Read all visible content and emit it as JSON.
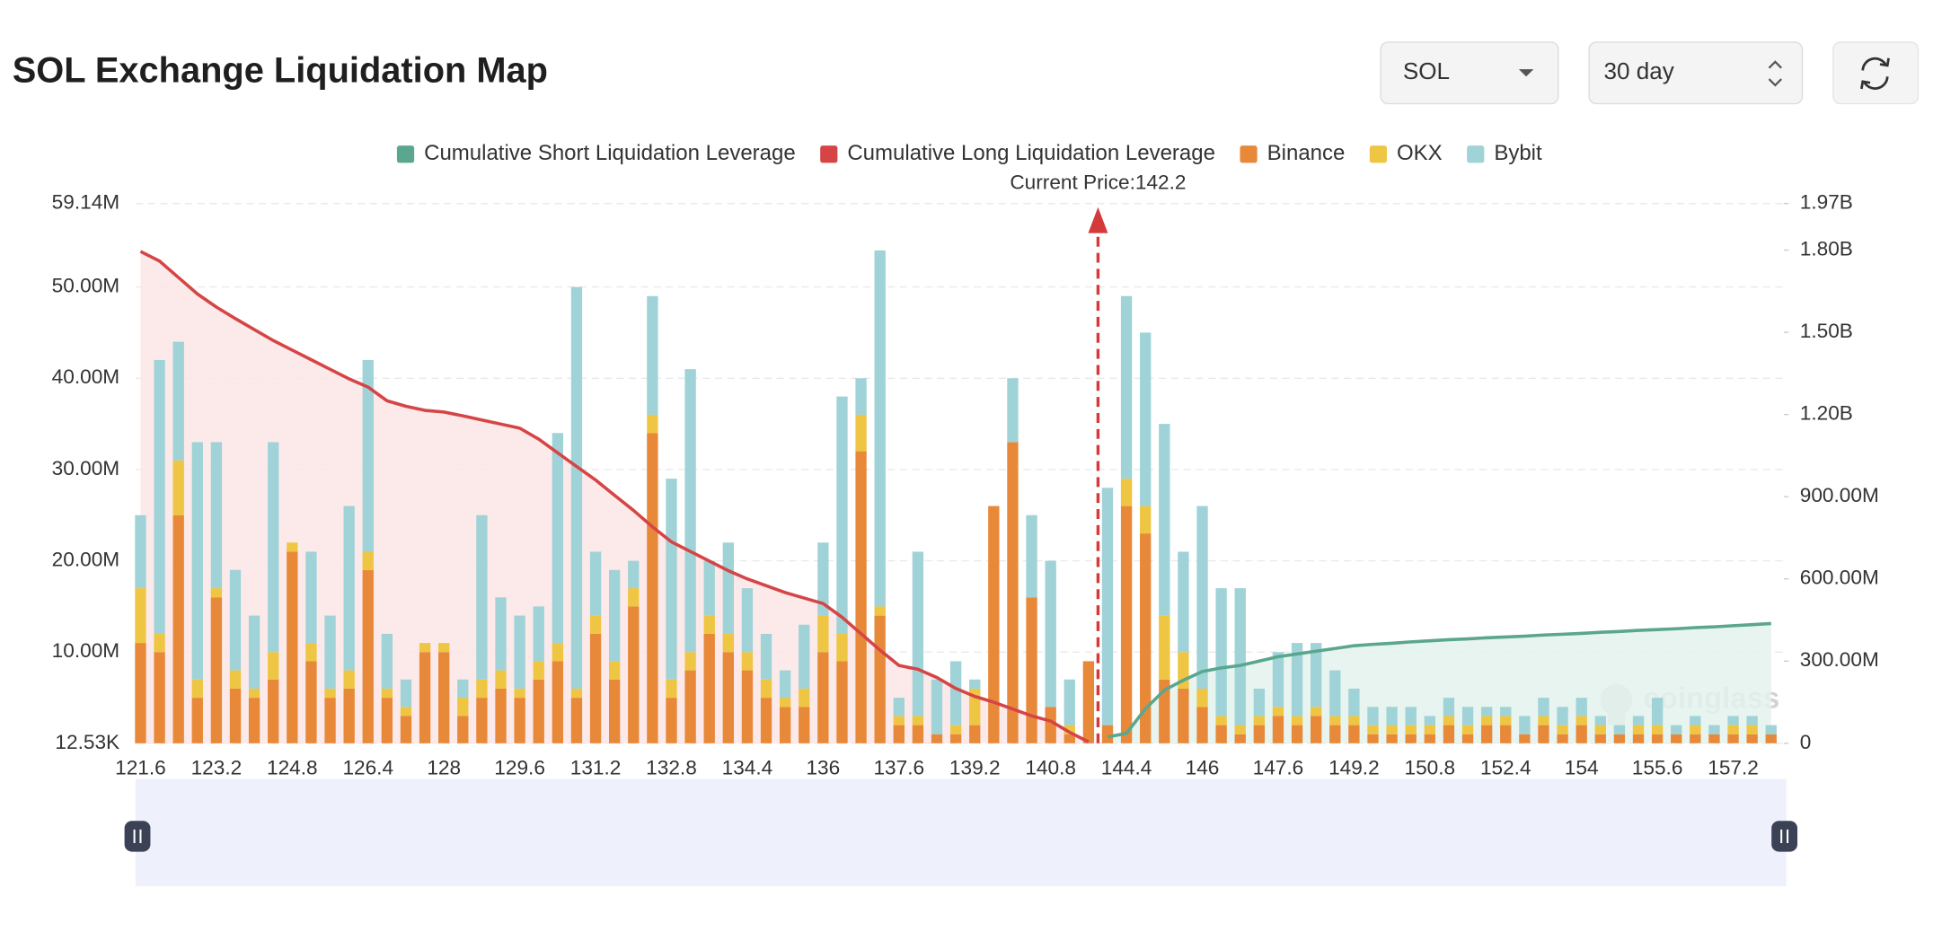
{
  "chart_data": {
    "type": "bar",
    "title": "SOL Exchange Liquidation Map",
    "annotation": "Current Price:142.2",
    "grid": true,
    "categories": [
      "121.6",
      null,
      null,
      null,
      "123.2",
      null,
      null,
      null,
      "124.8",
      null,
      null,
      null,
      "126.4",
      null,
      null,
      null,
      "128",
      null,
      null,
      null,
      "129.6",
      null,
      null,
      null,
      "131.2",
      null,
      null,
      null,
      "132.8",
      null,
      null,
      null,
      "134.4",
      null,
      null,
      null,
      "136",
      null,
      null,
      null,
      "137.6",
      null,
      null,
      null,
      "139.2",
      null,
      null,
      null,
      "140.8",
      null,
      null,
      null,
      "144.4",
      null,
      null,
      null,
      "146",
      null,
      null,
      null,
      "147.6",
      null,
      null,
      null,
      "149.2",
      null,
      null,
      null,
      "150.8",
      null,
      null,
      null,
      "152.4",
      null,
      null,
      null,
      "154",
      null,
      null,
      null,
      "155.6",
      null,
      null,
      null,
      "157.2",
      null,
      null
    ],
    "ylim": [
      12530,
      59140000
    ],
    "yticks": [
      {
        "value": 12530,
        "label": "12.53K"
      },
      {
        "value": 10000000,
        "label": "10.00M"
      },
      {
        "value": 20000000,
        "label": "20.00M"
      },
      {
        "value": 30000000,
        "label": "30.00M"
      },
      {
        "value": 40000000,
        "label": "40.00M"
      },
      {
        "value": 50000000,
        "label": "50.00M"
      },
      {
        "value": 59140000,
        "label": "59.14M"
      }
    ],
    "y2lim": [
      0,
      1970000000
    ],
    "y2ticks": [
      0,
      {
        "value": 300000000,
        "label": "300.00M"
      },
      {
        "value": 600000000,
        "label": "600.00M"
      },
      {
        "value": 900000000,
        "label": "900.00M"
      },
      {
        "value": 1200000000,
        "label": "1.20B"
      },
      {
        "value": 1500000000,
        "label": "1.50B"
      },
      {
        "value": 1800000000,
        "label": "1.80B"
      },
      {
        "value": 1970000000,
        "label": "1.97B"
      }
    ],
    "series": [
      {
        "name": "Cumulative Short Liquidation Leverage",
        "type": "line",
        "axis": "y2",
        "color": "#5aa68f",
        "fill": "#e4f2ec",
        "values": [
          null,
          null,
          null,
          null,
          null,
          null,
          null,
          null,
          null,
          null,
          null,
          null,
          null,
          null,
          null,
          null,
          null,
          null,
          null,
          null,
          null,
          null,
          null,
          null,
          null,
          null,
          null,
          null,
          null,
          null,
          null,
          null,
          null,
          null,
          null,
          null,
          null,
          null,
          null,
          null,
          null,
          null,
          null,
          null,
          null,
          null,
          null,
          null,
          null,
          null,
          null,
          23000000,
          36000000,
          126000000,
          194000000,
          230000000,
          262000000,
          275000000,
          284000000,
          300000000,
          316000000,
          326000000,
          336000000,
          346000000,
          356000000,
          361000000,
          365000000,
          370000000,
          374000000,
          378000000,
          381000000,
          385000000,
          388000000,
          391000000,
          395000000,
          398000000,
          401000000,
          405000000,
          408000000,
          412000000,
          415000000,
          418000000,
          422000000,
          425000000,
          429000000,
          433000000,
          437000000
        ]
      },
      {
        "name": "Cumulative Long Liquidation Leverage",
        "type": "line",
        "axis": "y2",
        "color": "#d64545",
        "fill": "#fbe6e7",
        "values": [
          1795000000,
          1760000000,
          1700000000,
          1640000000,
          1592000000,
          1550000000,
          1510000000,
          1470000000,
          1435000000,
          1400000000,
          1365000000,
          1330000000,
          1300000000,
          1250000000,
          1230000000,
          1215000000,
          1209000000,
          1195000000,
          1180000000,
          1165000000,
          1150000000,
          1110000000,
          1060000000,
          1010000000,
          961000000,
          905000000,
          850000000,
          790000000,
          735000000,
          700000000,
          665000000,
          630000000,
          600000000,
          575000000,
          550000000,
          530000000,
          510000000,
          460000000,
          400000000,
          340000000,
          284000000,
          270000000,
          240000000,
          200000000,
          171000000,
          150000000,
          125000000,
          100000000,
          81000000,
          40000000,
          5000000,
          null,
          null,
          null,
          null,
          null,
          null,
          null,
          null,
          null,
          null,
          null,
          null,
          null,
          null,
          null,
          null,
          null,
          null,
          null,
          null,
          null,
          null,
          null,
          null,
          null,
          null,
          null,
          null,
          null,
          null,
          null,
          null,
          null,
          null,
          null,
          null
        ]
      },
      {
        "name": "Binance",
        "type": "bar",
        "color": "#e8893a",
        "values": [
          11000000,
          10000000,
          25000000,
          5000000,
          16000000,
          6000000,
          5000000,
          7000000,
          21000000,
          9000000,
          5000000,
          6000000,
          19000000,
          5000000,
          3000000,
          10000000,
          10000000,
          3000000,
          5000000,
          6000000,
          5000000,
          7000000,
          9000000,
          5000000,
          12000000,
          7000000,
          15000000,
          34000000,
          5000000,
          8000000,
          12000000,
          10000000,
          8000000,
          5000000,
          4000000,
          4000000,
          10000000,
          9000000,
          32000000,
          14000000,
          2000000,
          2000000,
          1000000,
          1000000,
          2000000,
          26000000,
          33000000,
          16000000,
          4000000,
          1000000,
          9000000,
          2000000,
          26000000,
          23000000,
          7000000,
          6000000,
          4000000,
          2000000,
          1000000,
          2000000,
          3000000,
          2000000,
          3000000,
          2000000,
          2000000,
          1000000,
          1000000,
          1000000,
          1000000,
          2000000,
          1000000,
          2000000,
          2000000,
          1000000,
          2000000,
          1000000,
          2000000,
          1000000,
          1000000,
          1000000,
          1000000,
          1000000,
          1000000,
          1000000,
          1000000,
          1000000,
          1000000
        ]
      },
      {
        "name": "OKX",
        "type": "bar",
        "color": "#eec643",
        "values": [
          6000000,
          2000000,
          6000000,
          2000000,
          1000000,
          2000000,
          1000000,
          3000000,
          1000000,
          2000000,
          1000000,
          2000000,
          2000000,
          1000000,
          1000000,
          1000000,
          1000000,
          2000000,
          2000000,
          2000000,
          1000000,
          2000000,
          2000000,
          1000000,
          2000000,
          2000000,
          2000000,
          2000000,
          2000000,
          2000000,
          2000000,
          2000000,
          2000000,
          2000000,
          1000000,
          2000000,
          4000000,
          3000000,
          4000000,
          1000000,
          1000000,
          1000000,
          0,
          1000000,
          4000000,
          0,
          0,
          0,
          0,
          1000000,
          0,
          0,
          3000000,
          3000000,
          7000000,
          4000000,
          2000000,
          1000000,
          1000000,
          1000000,
          1000000,
          1000000,
          1000000,
          1000000,
          1000000,
          1000000,
          1000000,
          1000000,
          1000000,
          1000000,
          1000000,
          1000000,
          1000000,
          0,
          1000000,
          1000000,
          1000000,
          1000000,
          0,
          1000000,
          1000000,
          0,
          1000000,
          0,
          1000000,
          1000000,
          0
        ]
      },
      {
        "name": "Bybit",
        "type": "bar",
        "color": "#9fd3d8",
        "values": [
          8000000,
          30000000,
          13000000,
          26000000,
          16000000,
          11000000,
          8000000,
          23000000,
          0,
          10000000,
          8000000,
          18000000,
          21000000,
          6000000,
          3000000,
          0,
          0,
          2000000,
          18000000,
          8000000,
          8000000,
          6000000,
          23000000,
          44000000,
          7000000,
          10000000,
          3000000,
          13000000,
          22000000,
          31000000,
          6000000,
          10000000,
          7000000,
          5000000,
          3000000,
          7000000,
          8000000,
          26000000,
          4000000,
          39000000,
          2000000,
          18000000,
          6000000,
          7000000,
          1000000,
          0,
          7000000,
          9000000,
          16000000,
          5000000,
          0,
          26000000,
          20000000,
          19000000,
          21000000,
          11000000,
          20000000,
          14000000,
          15000000,
          3000000,
          6000000,
          8000000,
          7000000,
          5000000,
          3000000,
          2000000,
          2000000,
          2000000,
          1000000,
          2000000,
          2000000,
          1000000,
          1000000,
          2000000,
          2000000,
          2000000,
          2000000,
          1000000,
          1000000,
          1000000,
          3000000,
          1000000,
          1000000,
          1000000,
          1000000,
          1000000,
          1000000
        ]
      }
    ]
  },
  "controls": {
    "symbol": "SOL",
    "range": "30 day"
  },
  "watermark": "coinglass"
}
